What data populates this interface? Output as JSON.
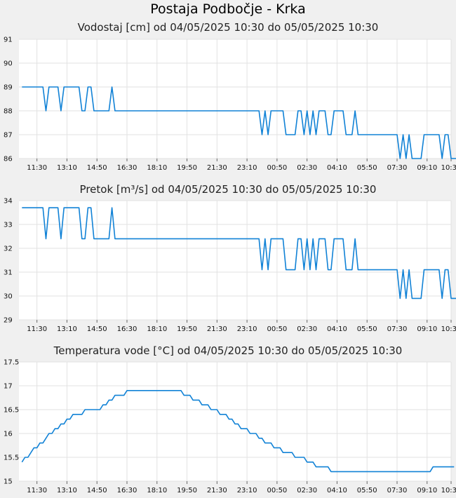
{
  "page": {
    "title": "Postaja Podbočje - Krka"
  },
  "colors": {
    "line": "#1182d6",
    "grid": "#e2e2e2",
    "plot_bg": "#ffffff",
    "page_bg": "#f0f0f0"
  },
  "chart_data": [
    {
      "type": "line",
      "title": "Vodostaj [cm] od 04/05/2025 10:30 do 05/05/2025 10:30",
      "xlabel": "",
      "ylabel": "",
      "x_ticks": [
        "11:30",
        "13:10",
        "14:50",
        "16:30",
        "18:10",
        "19:50",
        "21:30",
        "23:10",
        "00:50",
        "02:30",
        "04:10",
        "05:50",
        "07:30",
        "09:10",
        "10:30"
      ],
      "y_ticks": [
        "86",
        "87",
        "88",
        "89",
        "90",
        "91"
      ],
      "ylim": [
        86,
        91
      ],
      "grid": true,
      "series": [
        {
          "x_start": "10:30",
          "x_step_minutes": 10,
          "values": [
            89,
            89,
            89,
            89,
            89,
            89,
            89,
            89,
            88,
            89,
            89,
            89,
            89,
            88,
            89,
            89,
            89,
            89,
            89,
            89,
            88,
            88,
            89,
            89,
            88,
            88,
            88,
            88,
            88,
            88,
            89,
            88,
            88,
            88,
            88,
            88,
            88,
            88,
            88,
            88,
            88,
            88,
            88,
            88,
            88,
            88,
            88,
            88,
            88,
            88,
            88,
            88,
            88,
            88,
            88,
            88,
            88,
            88,
            88,
            88,
            88,
            88,
            88,
            88,
            88,
            88,
            88,
            88,
            88,
            88,
            88,
            88,
            88,
            88,
            88,
            88,
            88,
            88,
            88,
            88,
            87,
            88,
            87,
            88,
            88,
            88,
            88,
            88,
            87,
            87,
            87,
            87,
            88,
            88,
            87,
            88,
            87,
            88,
            87,
            88,
            88,
            88,
            87,
            87,
            88,
            88,
            88,
            88,
            87,
            87,
            87,
            88,
            87,
            87,
            87,
            87,
            87,
            87,
            87,
            87,
            87,
            87,
            87,
            87,
            87,
            87,
            86,
            87,
            86,
            87,
            86,
            86,
            86,
            86,
            87,
            87,
            87,
            87,
            87,
            87,
            86,
            87,
            87,
            86,
            86,
            86,
            86
          ]
        }
      ]
    },
    {
      "type": "line",
      "title": "Pretok [m³/s] od 04/05/2025 10:30 do 05/05/2025 10:30",
      "xlabel": "",
      "ylabel": "",
      "x_ticks": [
        "11:30",
        "13:10",
        "14:50",
        "16:30",
        "18:10",
        "19:50",
        "21:30",
        "23:10",
        "00:50",
        "02:30",
        "04:10",
        "05:50",
        "07:30",
        "09:10",
        "10:30"
      ],
      "y_ticks": [
        "29",
        "30",
        "31",
        "32",
        "33",
        "34"
      ],
      "ylim": [
        29,
        34
      ],
      "grid": true,
      "series": [
        {
          "x_start": "10:30",
          "x_step_minutes": 10,
          "values": [
            33.7,
            33.7,
            33.7,
            33.7,
            33.7,
            33.7,
            33.7,
            33.7,
            32.4,
            33.7,
            33.7,
            33.7,
            33.7,
            32.4,
            33.7,
            33.7,
            33.7,
            33.7,
            33.7,
            33.7,
            32.4,
            32.4,
            33.7,
            33.7,
            32.4,
            32.4,
            32.4,
            32.4,
            32.4,
            32.4,
            33.7,
            32.4,
            32.4,
            32.4,
            32.4,
            32.4,
            32.4,
            32.4,
            32.4,
            32.4,
            32.4,
            32.4,
            32.4,
            32.4,
            32.4,
            32.4,
            32.4,
            32.4,
            32.4,
            32.4,
            32.4,
            32.4,
            32.4,
            32.4,
            32.4,
            32.4,
            32.4,
            32.4,
            32.4,
            32.4,
            32.4,
            32.4,
            32.4,
            32.4,
            32.4,
            32.4,
            32.4,
            32.4,
            32.4,
            32.4,
            32.4,
            32.4,
            32.4,
            32.4,
            32.4,
            32.4,
            32.4,
            32.4,
            32.4,
            32.4,
            31.1,
            32.4,
            31.1,
            32.4,
            32.4,
            32.4,
            32.4,
            32.4,
            31.1,
            31.1,
            31.1,
            31.1,
            32.4,
            32.4,
            31.1,
            32.4,
            31.1,
            32.4,
            31.1,
            32.4,
            32.4,
            32.4,
            31.1,
            31.1,
            32.4,
            32.4,
            32.4,
            32.4,
            31.1,
            31.1,
            31.1,
            32.4,
            31.1,
            31.1,
            31.1,
            31.1,
            31.1,
            31.1,
            31.1,
            31.1,
            31.1,
            31.1,
            31.1,
            31.1,
            31.1,
            31.1,
            29.9,
            31.1,
            29.9,
            31.1,
            29.9,
            29.9,
            29.9,
            29.9,
            31.1,
            31.1,
            31.1,
            31.1,
            31.1,
            31.1,
            29.9,
            31.1,
            31.1,
            29.9,
            29.9,
            29.9,
            29.9
          ]
        }
      ]
    },
    {
      "type": "line",
      "title": "Temperatura vode [°C] od 04/05/2025 10:30 do 05/05/2025 10:30",
      "xlabel": "",
      "ylabel": "",
      "x_ticks": [
        "11:30",
        "13:10",
        "14:50",
        "16:30",
        "18:10",
        "19:50",
        "21:30",
        "23:10",
        "00:50",
        "02:30",
        "04:10",
        "05:50",
        "07:30",
        "09:10",
        "10:30"
      ],
      "y_ticks": [
        "15",
        "15.5",
        "16",
        "16.5",
        "17",
        "17.5"
      ],
      "ylim": [
        15,
        17.5
      ],
      "grid": true,
      "series": [
        {
          "x_start": "10:30",
          "x_step_minutes": 10,
          "values": [
            15.4,
            15.5,
            15.5,
            15.6,
            15.7,
            15.7,
            15.8,
            15.8,
            15.9,
            16.0,
            16.0,
            16.1,
            16.1,
            16.2,
            16.2,
            16.3,
            16.3,
            16.4,
            16.4,
            16.4,
            16.4,
            16.5,
            16.5,
            16.5,
            16.5,
            16.5,
            16.5,
            16.6,
            16.6,
            16.7,
            16.7,
            16.8,
            16.8,
            16.8,
            16.8,
            16.9,
            16.9,
            16.9,
            16.9,
            16.9,
            16.9,
            16.9,
            16.9,
            16.9,
            16.9,
            16.9,
            16.9,
            16.9,
            16.9,
            16.9,
            16.9,
            16.9,
            16.9,
            16.9,
            16.8,
            16.8,
            16.8,
            16.7,
            16.7,
            16.7,
            16.6,
            16.6,
            16.6,
            16.5,
            16.5,
            16.5,
            16.4,
            16.4,
            16.4,
            16.3,
            16.3,
            16.2,
            16.2,
            16.1,
            16.1,
            16.1,
            16.0,
            16.0,
            16.0,
            15.9,
            15.9,
            15.8,
            15.8,
            15.8,
            15.7,
            15.7,
            15.7,
            15.6,
            15.6,
            15.6,
            15.6,
            15.5,
            15.5,
            15.5,
            15.5,
            15.4,
            15.4,
            15.4,
            15.3,
            15.3,
            15.3,
            15.3,
            15.3,
            15.2,
            15.2,
            15.2,
            15.2,
            15.2,
            15.2,
            15.2,
            15.2,
            15.2,
            15.2,
            15.2,
            15.2,
            15.2,
            15.2,
            15.2,
            15.2,
            15.2,
            15.2,
            15.2,
            15.2,
            15.2,
            15.2,
            15.2,
            15.2,
            15.2,
            15.2,
            15.2,
            15.2,
            15.2,
            15.2,
            15.2,
            15.2,
            15.2,
            15.2,
            15.3,
            15.3,
            15.3,
            15.3,
            15.3,
            15.3,
            15.3,
            15.3
          ]
        }
      ]
    }
  ]
}
